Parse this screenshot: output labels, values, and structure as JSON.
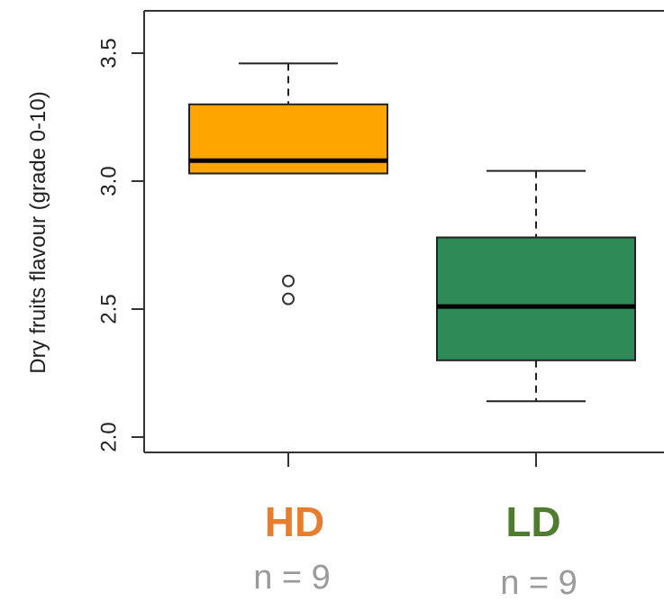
{
  "chart_data": {
    "type": "box",
    "ylabel": "Dry fruits flavour (grade 0-10)",
    "ylim": [
      2.0,
      3.5
    ],
    "yticks": [
      2.0,
      2.5,
      3.0,
      3.5
    ],
    "ytick_labels": [
      "2.0",
      "2.5",
      "3.0",
      "3.5"
    ],
    "categories": [
      "HD",
      "LD"
    ],
    "groups": [
      {
        "name": "HD",
        "color": "#FFA500",
        "label_color": "#E87D2E",
        "n_label": "n = 9",
        "whisker_low": 3.03,
        "q1": 3.03,
        "median": 3.08,
        "q3": 3.3,
        "whisker_high": 3.46,
        "outliers": [
          2.61,
          2.54
        ]
      },
      {
        "name": "LD",
        "color": "#2E8B57",
        "label_color": "#4F7D2F",
        "n_label": "n = 9",
        "whisker_low": 2.14,
        "q1": 2.3,
        "median": 2.51,
        "q3": 2.78,
        "whisker_high": 3.04,
        "outliers": []
      }
    ]
  }
}
